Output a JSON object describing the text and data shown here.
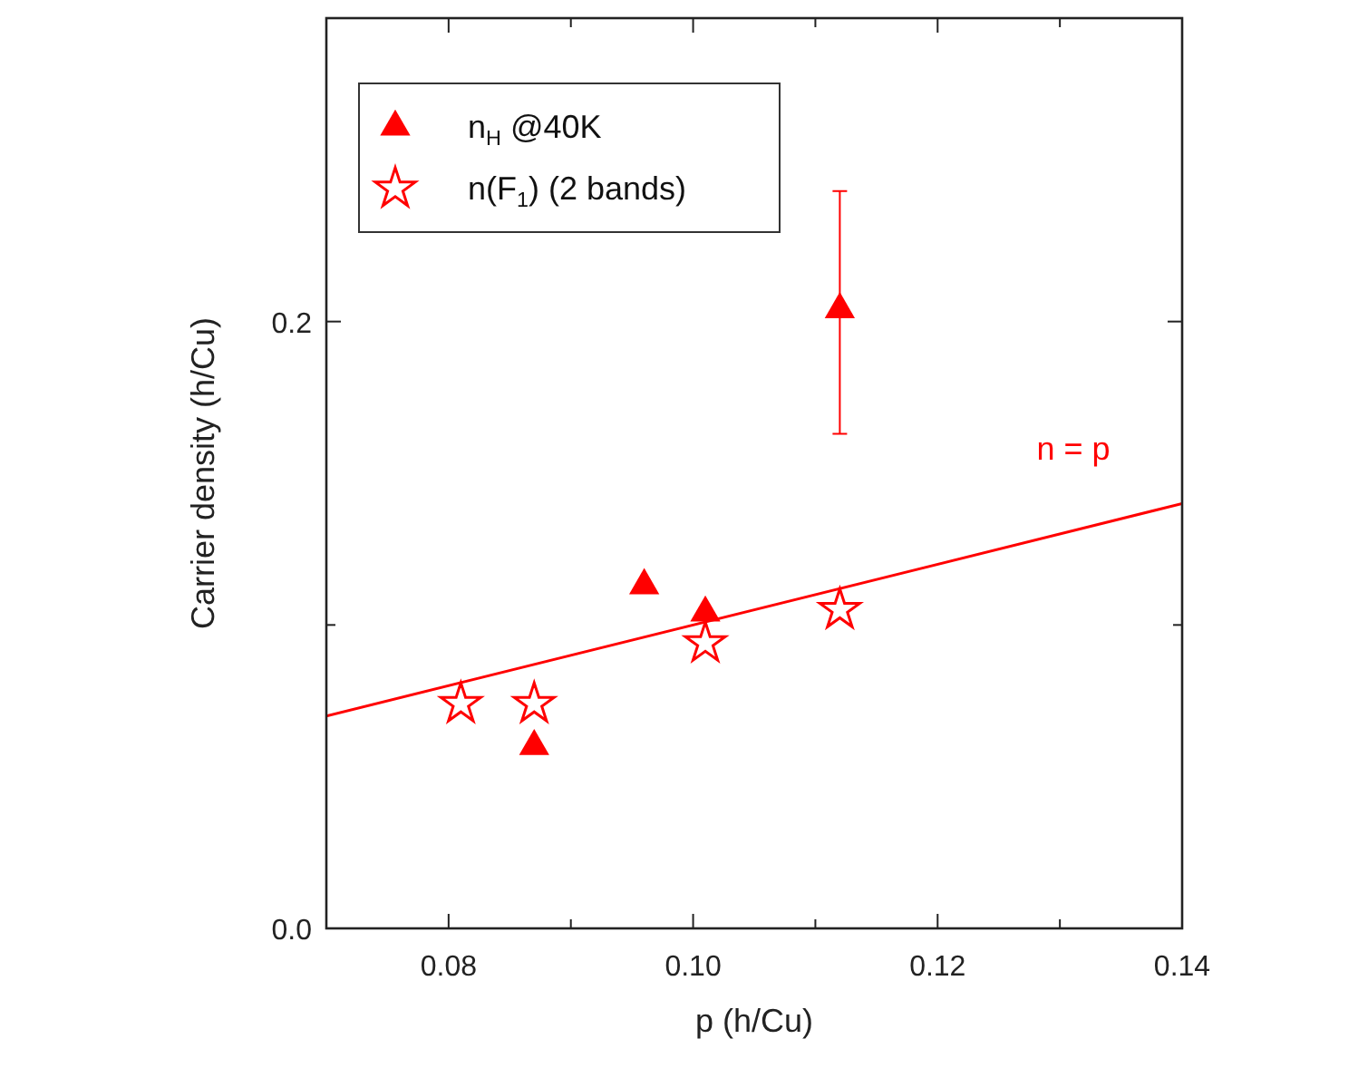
{
  "chart_data": {
    "type": "scatter",
    "xlabel": "p (h/Cu)",
    "ylabel": "Carrier density (h/Cu)",
    "xlim": [
      0.07,
      0.14
    ],
    "ylim": [
      0,
      0.3
    ],
    "xticks": [
      {
        "value": 0.08,
        "label": "0.08"
      },
      {
        "value": 0.09,
        "label": null
      },
      {
        "value": 0.1,
        "label": "0.10"
      },
      {
        "value": 0.11,
        "label": null
      },
      {
        "value": 0.12,
        "label": "0.12"
      },
      {
        "value": 0.13,
        "label": null
      },
      {
        "value": 0.14,
        "label": "0.14"
      }
    ],
    "yticks": [
      {
        "value": 0,
        "label": "0.0"
      },
      {
        "value": 0.1,
        "label": null
      },
      {
        "value": 0.2,
        "label": "0.2"
      }
    ],
    "grid": false,
    "legend": "top left",
    "series": [
      {
        "name": "n$_{H}$ @40K",
        "marker": "triangle",
        "color": "#ff0000",
        "x": [
          0.087,
          0.096,
          0.101,
          0.112
        ],
        "values": [
          0.06,
          0.113,
          0.104,
          0.204
        ],
        "errors": [
          null,
          null,
          null,
          [
            0.163,
            0.243
          ]
        ]
      },
      {
        "name": "n(F$_{1}$) (2 bands)",
        "marker": "star",
        "color": "#ff0000",
        "x": [
          0.081,
          0.087,
          0.101,
          0.112
        ],
        "values": [
          0.074,
          0.074,
          0.094,
          0.105
        ]
      },
      {
        "type": "line",
        "color": "#ff0000",
        "x": [
          0.07,
          0.14
        ],
        "values": [
          0.07,
          0.14
        ]
      }
    ],
    "annotations": [
      "n = p"
    ]
  }
}
